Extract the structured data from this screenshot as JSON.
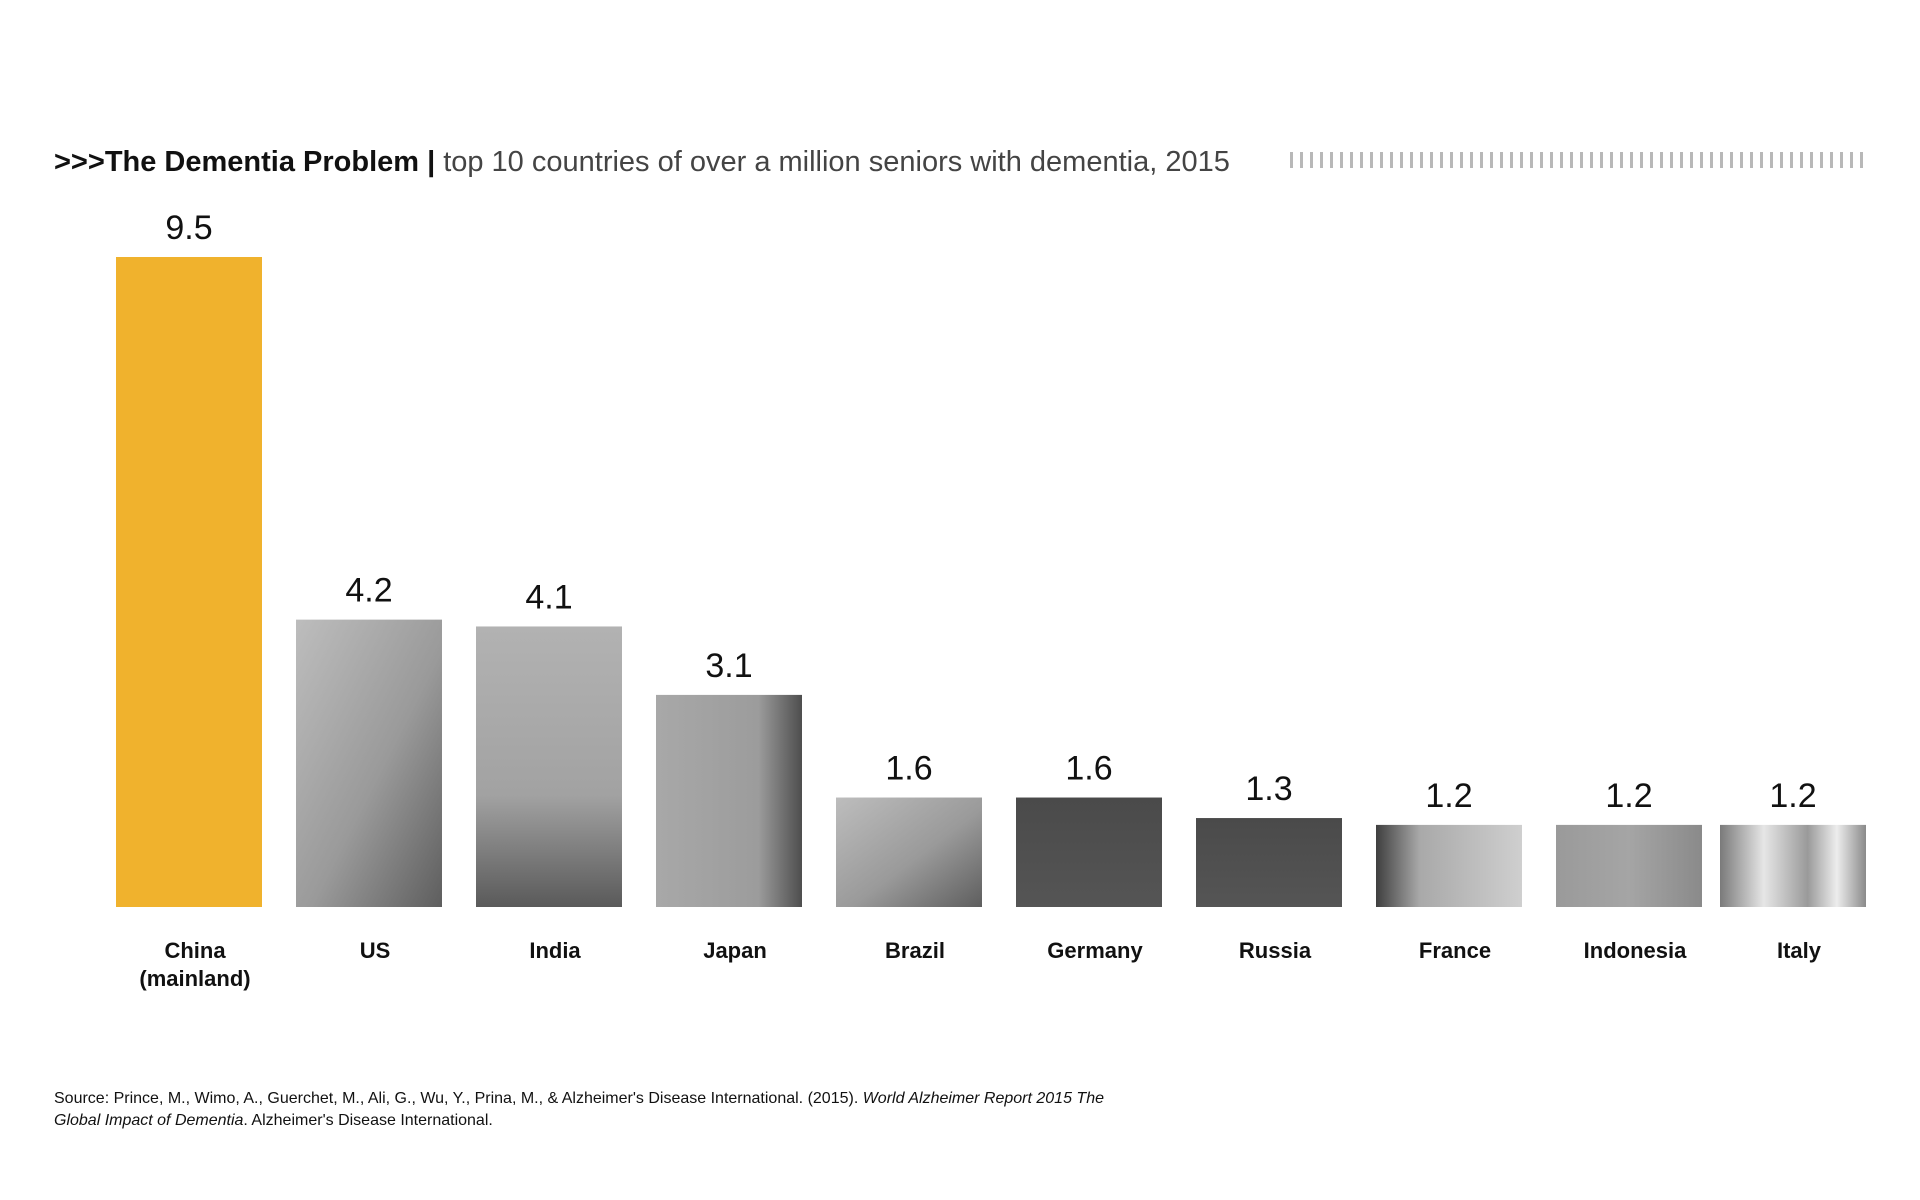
{
  "title": {
    "prefix": ">>>",
    "main": "The Dementia Problem",
    "separator": "|",
    "subtitle": "top 10 countries of over a million seniors with dementia, 2015"
  },
  "colors": {
    "highlight": "#f0b22d",
    "photo_bar": "#8a8a8a",
    "text": "#111111",
    "tick_strip": "#b8b8b8"
  },
  "source": {
    "prefix": "Source: Prince, M., Wimo, A., Guerchet, M., Ali, G., Wu, Y., Prina, M., & Alzheimer's Disease International. (2015). ",
    "title_italic": "World Alzheimer Report 2015 The Global Impact of Dementia",
    "suffix": ". Alzheimer's Disease International."
  },
  "chart_data": {
    "type": "bar",
    "title": "The Dementia Problem",
    "subtitle": "top 10 countries of over a million seniors with dementia, 2015",
    "categories": [
      [
        "China",
        "(mainland)"
      ],
      [
        "US"
      ],
      [
        "India"
      ],
      [
        "Japan"
      ],
      [
        "Brazil"
      ],
      [
        "Germany"
      ],
      [
        "Russia"
      ],
      [
        "France"
      ],
      [
        "Indonesia"
      ],
      [
        "Italy"
      ]
    ],
    "values": [
      9.5,
      4.2,
      4.1,
      3.1,
      1.6,
      1.6,
      1.3,
      1.2,
      1.2,
      1.2
    ],
    "value_labels": [
      "9.5",
      "4.2",
      "4.1",
      "3.1",
      "1.6",
      "1.6",
      "1.3",
      "1.2",
      "1.2",
      "1.2"
    ],
    "highlight_index": 0,
    "grid": false,
    "legend": "none"
  }
}
